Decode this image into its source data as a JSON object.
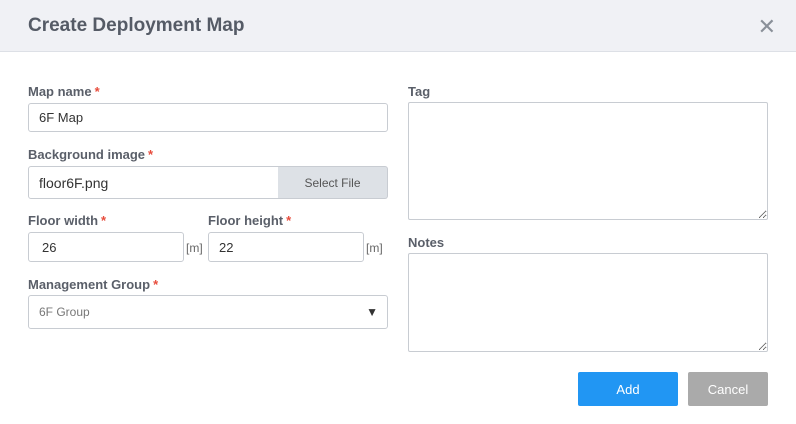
{
  "dialog": {
    "title": "Create Deployment Map",
    "close_icon": "close-icon"
  },
  "form": {
    "map_name": {
      "label": "Map name",
      "value": "6F Map"
    },
    "background_image": {
      "label": "Background image",
      "value": "floor6F.png",
      "button": "Select File"
    },
    "floor_width": {
      "label": "Floor width",
      "value": "26",
      "unit": "[m]"
    },
    "floor_height": {
      "label": "Floor height",
      "value": "22",
      "unit": "[m]"
    },
    "management_group": {
      "label": "Management Group",
      "value": "6F Group"
    },
    "tag": {
      "label": "Tag",
      "value": ""
    },
    "notes": {
      "label": "Notes",
      "value": ""
    },
    "required_mark": "*"
  },
  "actions": {
    "add": "Add",
    "cancel": "Cancel"
  },
  "colors": {
    "primary": "#2196f3",
    "secondary": "#aaaaaa",
    "required": "#e74c3c"
  }
}
